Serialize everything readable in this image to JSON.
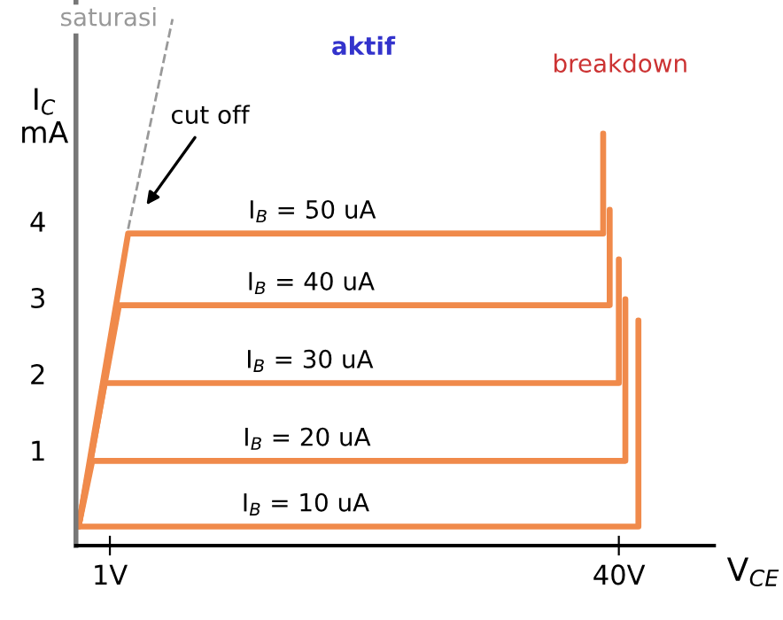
{
  "chart_data": {
    "type": "line",
    "xlabel": "V$_{CE}$",
    "ylabel": "I$_{C}$\nmA",
    "xlim": [
      -1.6,
      47.3
    ],
    "ylim": [
      -0.25,
      6.9
    ],
    "xticks": [
      {
        "value": 1,
        "label": "1V"
      },
      {
        "value": 40,
        "label": "40V"
      }
    ],
    "yticks": [
      1,
      2,
      3,
      4
    ],
    "grid": false,
    "legend": false,
    "marker": "none",
    "series": [
      {
        "color": "#f08a4b",
        "x": [
          -1.4,
          2.4,
          38.8,
          38.8
        ],
        "values": [
          0,
          3.84,
          3.84,
          5.15
        ]
      },
      {
        "color": "#f08a4b",
        "x": [
          -1.4,
          1.7,
          39.3,
          39.3
        ],
        "values": [
          0,
          2.9,
          2.9,
          4.15
        ]
      },
      {
        "color": "#f08a4b",
        "x": [
          -1.4,
          0.6,
          40.0,
          40.0
        ],
        "values": [
          0,
          1.88,
          1.88,
          3.5
        ]
      },
      {
        "color": "#f08a4b",
        "x": [
          -1.4,
          -0.35,
          40.5,
          40.5
        ],
        "values": [
          0,
          0.86,
          0.86,
          2.98
        ]
      },
      {
        "color": "#f08a4b",
        "x": [
          -1.4,
          -1.3,
          41.5,
          41.5
        ],
        "values": [
          0,
          0.0,
          0.0,
          2.7
        ]
      },
      {
        "name": "saturasi",
        "color": "#999999",
        "line_style": "dashed",
        "x": [
          2.4,
          5.8
        ],
        "values": [
          3.9,
          6.65
        ]
      }
    ],
    "annotations": [
      {
        "text": "I$_{B}$ = 50 uA",
        "x": 11.6,
        "y": 3.84
      },
      {
        "text": "I$_{B}$ = 40 uA",
        "x": 11.5,
        "y": 2.9
      },
      {
        "text": "I$_{B}$ = 30 uA",
        "x": 11.4,
        "y": 1.88
      },
      {
        "text": "I$_{B}$ = 20 uA",
        "x": 11.2,
        "y": 0.86
      },
      {
        "text": "I$_{B}$ = 10 uA",
        "x": 11.1,
        "y": 0.0
      },
      "cut off",
      "aktif",
      "breakdown"
    ]
  }
}
